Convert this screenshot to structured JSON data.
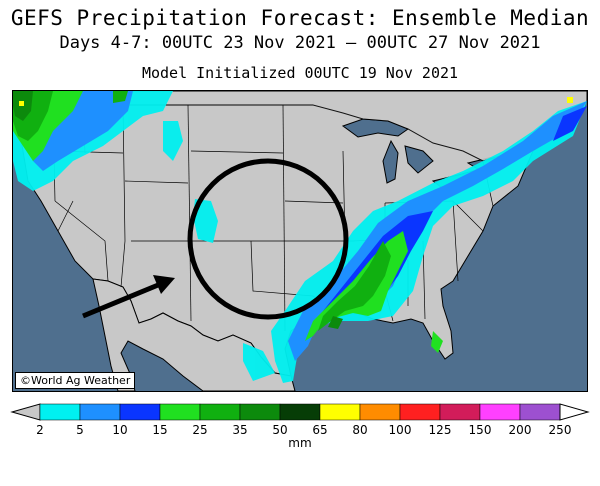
{
  "header": {
    "title": "GEFS Precipitation Forecast: Ensemble Median",
    "subtitle": "Days 4-7: 00UTC 23 Nov 2021 — 00UTC 27 Nov 2021",
    "model_init": "Model Initialized 00UTC 19 Nov 2021"
  },
  "map": {
    "credit": "©World Ag Weather",
    "ocean_color": "#4f6f8e",
    "land_color": "#c8c8c8"
  },
  "legend": {
    "units": "mm",
    "ticks": [
      "2",
      "5",
      "10",
      "15",
      "25",
      "35",
      "50",
      "65",
      "80",
      "100",
      "125",
      "150",
      "200",
      "250"
    ],
    "colors": [
      "#00f0f0",
      "#1e90ff",
      "#0a35ff",
      "#20e020",
      "#10b010",
      "#0c8a0c",
      "#063d06",
      "#ffff00",
      "#ff8c00",
      "#ff2020",
      "#d21c5a",
      "#ff40ff",
      "#9d50d0"
    ]
  }
}
